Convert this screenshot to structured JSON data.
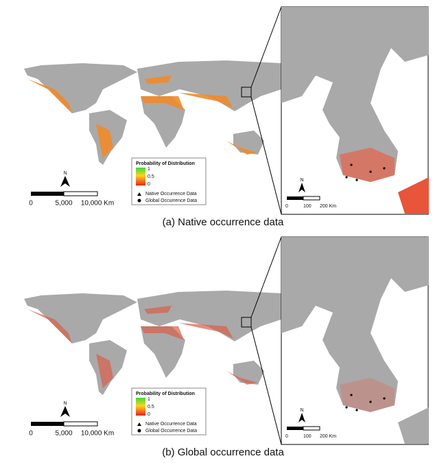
{
  "panels": [
    {
      "caption": "(a)  Native occurrence data",
      "legend": {
        "title": "Probability of Distribution",
        "scale": [
          "1",
          "0.5",
          "0"
        ],
        "items": [
          "Native Occurrence Data",
          "Global Occurrence Data"
        ]
      },
      "world_scale": [
        "0",
        "5,000",
        "10,000 Km"
      ],
      "inset_scale": [
        "0",
        "100",
        "200 Km"
      ],
      "north": "N",
      "inset_north": "N"
    },
    {
      "caption": "(b)  Global occurrence data",
      "legend": {
        "title": "Probability of Distribution",
        "scale": [
          "1",
          "0.5",
          "0"
        ],
        "items": [
          "Native Occurrence Data",
          "Global Occurrence Data"
        ]
      },
      "world_scale": [
        "0",
        "5,000",
        "10,000 Km"
      ],
      "inset_scale": [
        "0",
        "100",
        "200 Km"
      ],
      "north": "N",
      "inset_north": "N"
    }
  ]
}
